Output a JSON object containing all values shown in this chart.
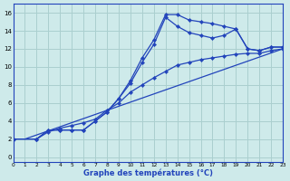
{
  "xlabel": "Graphe des températures (°C)",
  "background_color": "#ceeaea",
  "grid_color": "#aacfcf",
  "line_color": "#2244bb",
  "xlim": [
    0,
    23
  ],
  "ylim": [
    -0.5,
    17
  ],
  "xticks": [
    0,
    1,
    2,
    3,
    4,
    5,
    6,
    7,
    8,
    9,
    10,
    11,
    12,
    13,
    14,
    15,
    16,
    17,
    18,
    19,
    20,
    21,
    22,
    23
  ],
  "yticks": [
    0,
    2,
    4,
    6,
    8,
    10,
    12,
    14,
    16
  ],
  "series": [
    {
      "x": [
        0,
        2,
        3,
        4,
        5,
        6,
        7,
        8,
        9,
        10,
        11,
        12,
        13,
        14,
        15,
        16,
        17,
        18,
        19,
        20,
        21,
        22,
        23
      ],
      "y": [
        2,
        2,
        3,
        3,
        3,
        3,
        4,
        5,
        6.5,
        8.5,
        11,
        13,
        15.8,
        15.8,
        15.2,
        15.0,
        14.8,
        14.5,
        14.2,
        12.0,
        11.8,
        12.2,
        12.2
      ],
      "marker": true
    },
    {
      "x": [
        0,
        2,
        3,
        4,
        5,
        6,
        7,
        8,
        9,
        10,
        11,
        12,
        13,
        14,
        15,
        16,
        17,
        18,
        19,
        20,
        21,
        22,
        23
      ],
      "y": [
        2,
        2,
        3,
        3,
        3,
        3,
        4,
        5,
        6.5,
        8.2,
        10.5,
        12.5,
        15.5,
        14.5,
        13.8,
        13.5,
        13.2,
        13.5,
        14.2,
        12.0,
        11.8,
        12.2,
        12.2
      ],
      "marker": true
    },
    {
      "x": [
        1,
        23
      ],
      "y": [
        2,
        12
      ],
      "marker": false
    },
    {
      "x": [
        2,
        3,
        4,
        5,
        6,
        7,
        8,
        9,
        10,
        11,
        12,
        13,
        14,
        15,
        16,
        17,
        18,
        19,
        20,
        21,
        22,
        23
      ],
      "y": [
        2,
        2.8,
        3.2,
        3.5,
        3.8,
        4.2,
        5.2,
        6.0,
        7.2,
        8.0,
        8.8,
        9.5,
        10.2,
        10.5,
        10.8,
        11.0,
        11.2,
        11.4,
        11.5,
        11.5,
        11.8,
        12.0
      ],
      "marker": true
    }
  ]
}
